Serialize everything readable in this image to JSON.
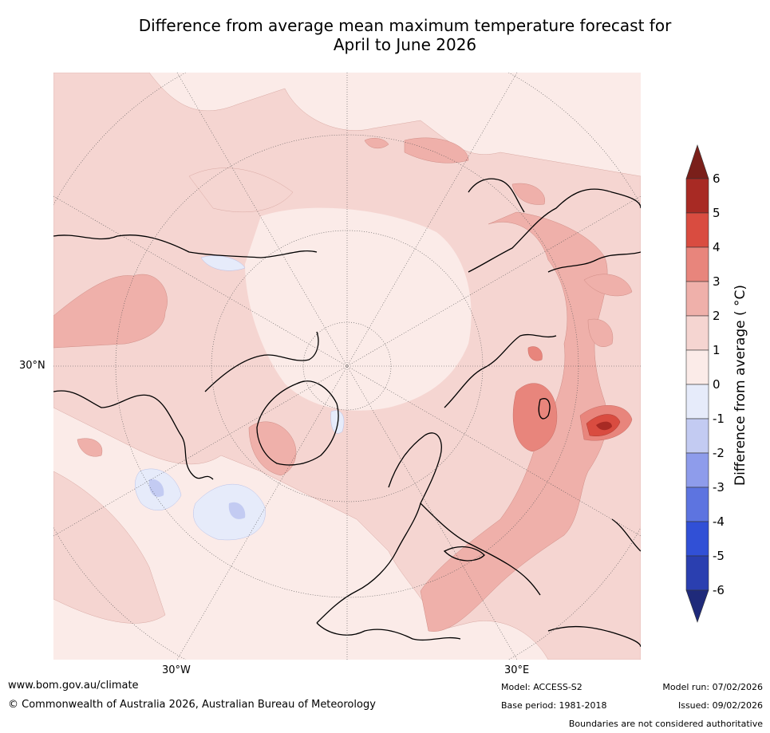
{
  "title_line1": "Difference from average mean maximum temperature forecast for",
  "title_line2": "April to June 2026",
  "map": {
    "projection": "north-polar-stereographic",
    "lat_labels": [
      "30°N"
    ],
    "lon_labels": [
      "30°W",
      "30°E"
    ]
  },
  "colorbar": {
    "label": "Difference from average ( °C)",
    "ticks": [
      "6",
      "5",
      "4",
      "3",
      "2",
      "1",
      "0",
      "-1",
      "-2",
      "-3",
      "-4",
      "-5",
      "-6"
    ],
    "colors": {
      "gt6": "#7a1f1a",
      "5to6": "#a82a24",
      "4to5": "#d94c40",
      "3to4": "#e8857c",
      "2to3": "#efb0aa",
      "1to2": "#f5d5d1",
      "0to1": "#fbebe8",
      "m1to0": "#e6ebfa",
      "m2tom1": "#c3cbf2",
      "m3tom2": "#8e9ceb",
      "m4tom3": "#5d74e0",
      "m5tom4": "#3150d6",
      "m6tom5": "#2a3fb0",
      "ltm6": "#1f2a7a"
    }
  },
  "footer": {
    "website": "www.bom.gov.au/climate",
    "copyright": "© Commonwealth of Australia 2026, Australian Bureau of Meteorology",
    "model": "Model: ACCESS-S2",
    "base_period": "Base period: 1981-2018",
    "model_run": "Model run: 07/02/2026",
    "issued": "Issued: 09/02/2026",
    "disclaimer": "Boundaries are not considered authoritative"
  }
}
